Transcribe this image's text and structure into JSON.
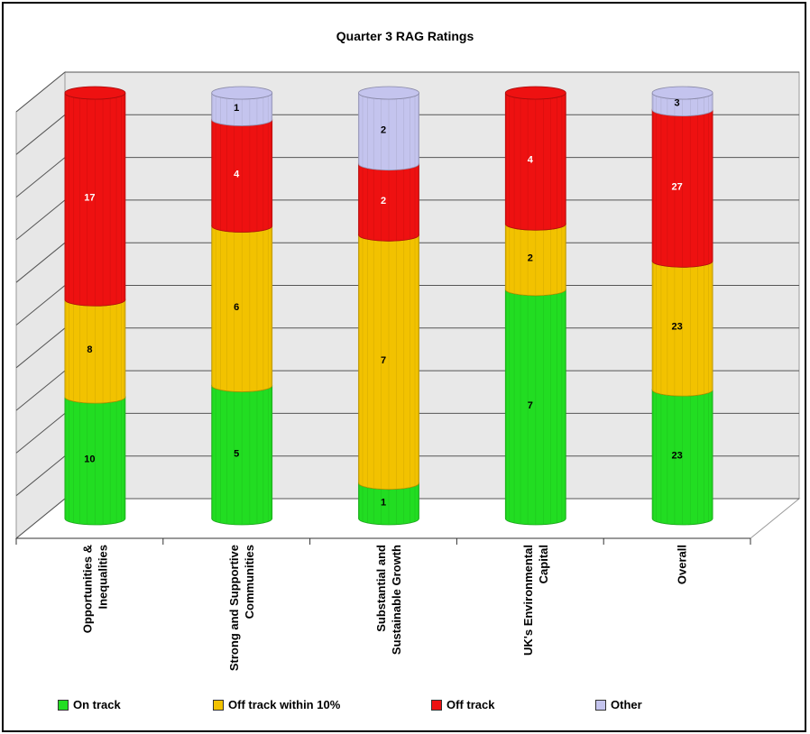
{
  "chart_data": {
    "type": "bar",
    "subtype": "stacked-3d-cylinder",
    "title": "Quarter 3 RAG Ratings",
    "categories": [
      "Opportunities & Inequalities",
      "Strong and Supportive Communities",
      "Substantial and Sustainable Growth",
      "UK's Environmental Capital",
      "Overall"
    ],
    "category_label_lines": [
      [
        "Opportunities &",
        "Inequalities"
      ],
      [
        "Strong and Supportive",
        "Communities"
      ],
      [
        "Substantial and",
        "Sustainable Growth"
      ],
      [
        "UK's Environmental",
        "Capital"
      ],
      [
        "Overall"
      ]
    ],
    "series": [
      {
        "name": "On track",
        "color": "#22dd22",
        "values": [
          10,
          5,
          1,
          7,
          23
        ],
        "labels": [
          "10",
          "5",
          "1",
          "7",
          "23"
        ]
      },
      {
        "name": "Off track within 10%",
        "color": "#f2c200",
        "values": [
          8,
          6,
          7,
          2,
          23
        ],
        "labels": [
          "8",
          "6",
          "7",
          "2",
          "23"
        ]
      },
      {
        "name": "Off track",
        "color": "#ee1111",
        "values": [
          17,
          4,
          2,
          4,
          27
        ],
        "labels": [
          "17",
          "4",
          "2",
          "4",
          "27"
        ]
      },
      {
        "name": "Other",
        "color": "#c4c4ee",
        "values": [
          0,
          1,
          2,
          0,
          3
        ],
        "labels": [
          "",
          "1",
          "2",
          "",
          "3"
        ]
      }
    ],
    "stacking": "percent",
    "ylim": [
      0,
      100
    ],
    "gridlines": 10,
    "grid": true,
    "legend_position": "bottom"
  }
}
